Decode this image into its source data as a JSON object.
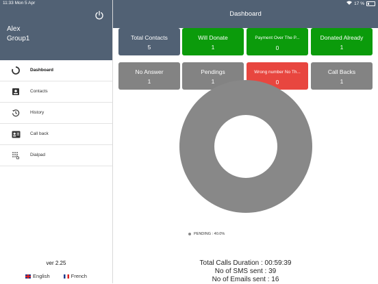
{
  "statusbar": {
    "time": "11:33",
    "date": "Mon 5 Apr",
    "battery": "17 %"
  },
  "sidebar": {
    "user_name": "Alex",
    "user_group": "Group1",
    "menu": [
      {
        "label": "Dashboard",
        "icon": "dashboard-icon"
      },
      {
        "label": "Contacts",
        "icon": "contacts-icon"
      },
      {
        "label": "History",
        "icon": "history-icon"
      },
      {
        "label": "Call back",
        "icon": "callback-icon"
      },
      {
        "label": "Dialpad",
        "icon": "dialpad-icon"
      }
    ],
    "version": "ver 2.25",
    "lang_english": "English",
    "lang_french": "French"
  },
  "header": {
    "title": "Dashboard"
  },
  "tiles": [
    {
      "label": "Total Contacts",
      "value": "5",
      "color": "#516174"
    },
    {
      "label": "Will Donate",
      "value": "1",
      "color": "#0b9b0b"
    },
    {
      "label": "Payment Over The P...",
      "value": "0",
      "color": "#0b9b0b"
    },
    {
      "label": "Donated Already",
      "value": "1",
      "color": "#0b9b0b"
    },
    {
      "label": "No Answer",
      "value": "1",
      "color": "#838383"
    },
    {
      "label": "Pendings",
      "value": "1",
      "color": "#838383"
    },
    {
      "label": "Wrong number No Th...",
      "value": "0",
      "color": "#e8463f"
    },
    {
      "label": "Call Backs",
      "value": "1",
      "color": "#838383"
    }
  ],
  "chart_data": {
    "type": "pie",
    "donut": true,
    "slices": [
      {
        "label": "PENDING",
        "value": 40.0,
        "color": "#888888"
      }
    ],
    "legend_text": "PENDING : 40.0%"
  },
  "stats": {
    "calls_duration": "Total Calls Duration : 00:59:39",
    "sms_sent": "No of SMS sent : 39",
    "emails_sent": "No of Emails sent : 16"
  }
}
